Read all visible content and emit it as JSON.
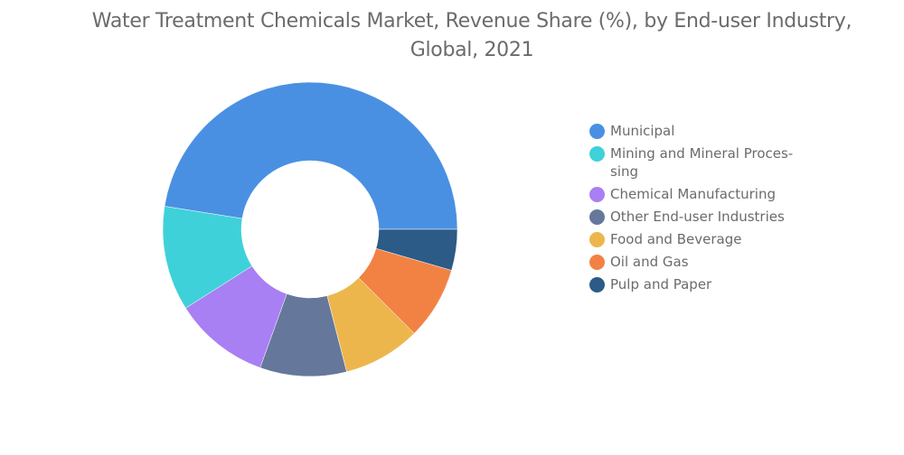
{
  "chart_data": {
    "type": "pie",
    "variant": "donut",
    "title": "Water Treatment Chemicals Market, Revenue Share (%), by End-user Industry, Global, 2021",
    "legend_position": "right",
    "categories": [
      "Municipal",
      "Mining and Mineral Proces-sing",
      "Chemical Manufacturing",
      "Other End-user Industries",
      "Food and Beverage",
      "Oil and Gas",
      "Pulp and Paper"
    ],
    "values": [
      47.5,
      11.5,
      10.5,
      9.5,
      8.5,
      8.0,
      4.5
    ],
    "colors": [
      "#4a90e2",
      "#3fd1d9",
      "#a97ff4",
      "#66779c",
      "#edb64d",
      "#f28244",
      "#2b5b86"
    ]
  }
}
